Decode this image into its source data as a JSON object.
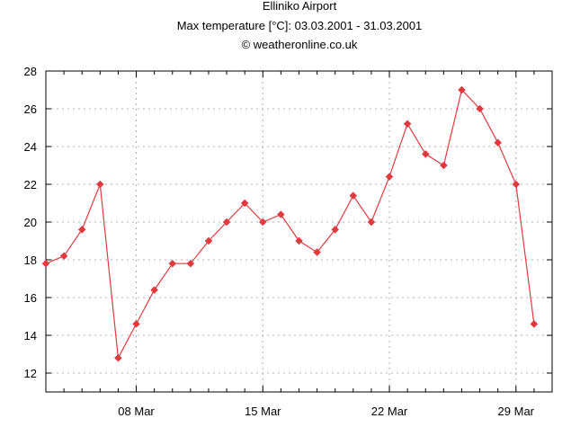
{
  "chart_data": {
    "type": "line",
    "title": "Elliniko Airport",
    "subtitle": "Max temperature [°C]: 03.03.2001 - 31.03.2001",
    "credit": "© weatheronline.co.uk",
    "xlabel": "",
    "ylabel": "",
    "x_start_day": 3,
    "x_end_day": 31,
    "ylim": [
      11,
      28
    ],
    "y_ticks": [
      12,
      14,
      16,
      18,
      20,
      22,
      24,
      26,
      28
    ],
    "x_ticks": [
      {
        "day": 8,
        "label": "08 Mar"
      },
      {
        "day": 15,
        "label": "15 Mar"
      },
      {
        "day": 22,
        "label": "22 Mar"
      },
      {
        "day": 29,
        "label": "29 Mar"
      }
    ],
    "grid": true,
    "color": "#e0393e",
    "series": [
      {
        "name": "Max temperature",
        "x": [
          3,
          4,
          5,
          6,
          7,
          8,
          9,
          10,
          11,
          12,
          13,
          14,
          15,
          16,
          17,
          18,
          19,
          20,
          21,
          22,
          23,
          24,
          25,
          26,
          27,
          28,
          29,
          30
        ],
        "values": [
          17.8,
          18.2,
          19.6,
          22.0,
          12.8,
          14.6,
          16.4,
          17.8,
          17.8,
          19.0,
          20.0,
          21.0,
          20.0,
          20.4,
          19.0,
          18.4,
          19.6,
          21.4,
          20.0,
          22.4,
          25.2,
          23.6,
          23.0,
          27.0,
          26.0,
          24.2,
          22.0,
          14.6
        ]
      }
    ]
  }
}
